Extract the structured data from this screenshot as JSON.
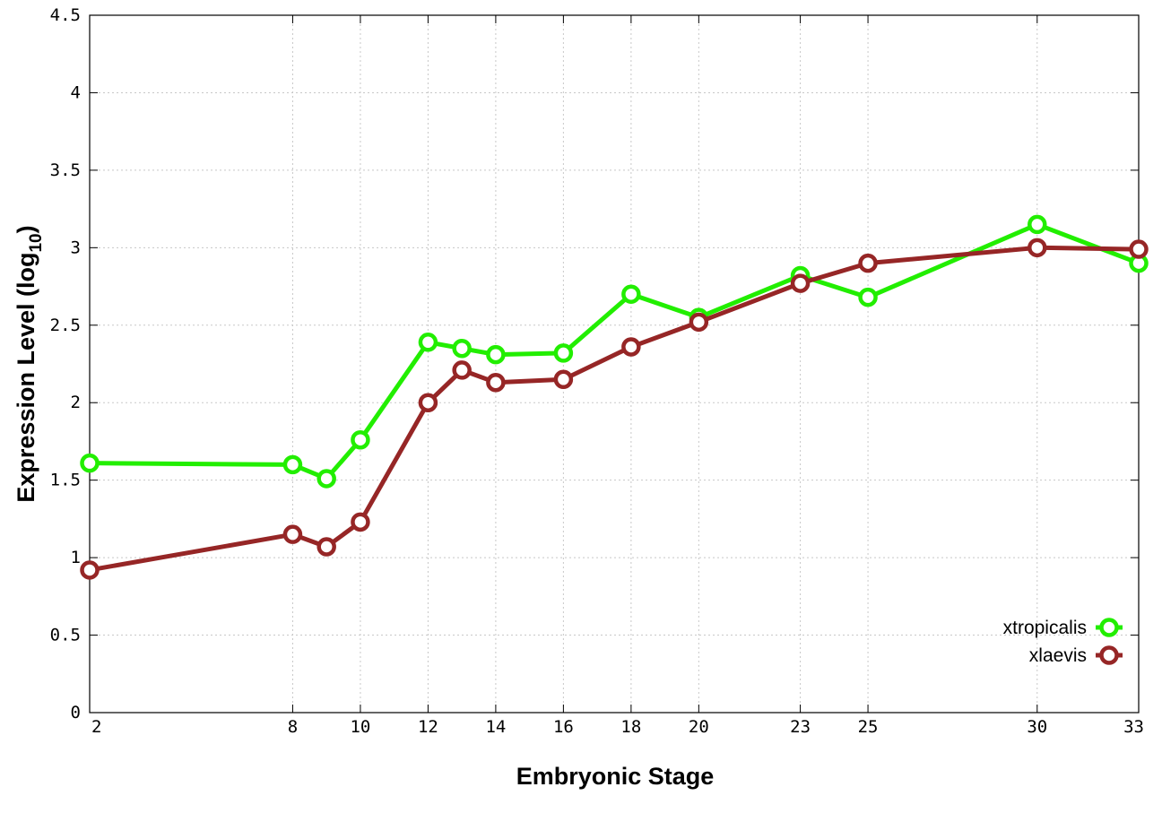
{
  "chart_data": {
    "type": "line",
    "xlabel": "Embryonic Stage",
    "ylabel_main": "Expression Level (log",
    "ylabel_sub": "10",
    "ylabel_close": ")",
    "xlim": [
      2,
      33
    ],
    "ylim": [
      0,
      4.5
    ],
    "xticks": [
      2,
      8,
      10,
      12,
      14,
      16,
      18,
      20,
      23,
      25,
      30,
      33
    ],
    "yticks": [
      0,
      0.5,
      1,
      1.5,
      2,
      2.5,
      3,
      3.5,
      4,
      4.5
    ],
    "ytick_labels": [
      "0",
      "0.5",
      "1",
      "1.5",
      "2",
      "2.5",
      "3",
      "3.5",
      "4",
      "4.5"
    ],
    "grid": true,
    "legend_position": "bottom-right",
    "series": [
      {
        "name": "xtropicalis",
        "color": "#22ee00",
        "x": [
          2,
          8,
          9,
          10,
          12,
          13,
          14,
          16,
          18,
          20,
          23,
          25,
          30,
          33
        ],
        "y": [
          1.61,
          1.6,
          1.51,
          1.76,
          2.39,
          2.35,
          2.31,
          2.32,
          2.7,
          2.55,
          2.82,
          2.68,
          3.15,
          2.9
        ]
      },
      {
        "name": "xlaevis",
        "color": "#962626",
        "x": [
          2,
          8,
          9,
          10,
          12,
          13,
          14,
          16,
          18,
          20,
          23,
          25,
          30,
          33
        ],
        "y": [
          0.92,
          1.15,
          1.07,
          1.23,
          2.0,
          2.21,
          2.13,
          2.15,
          2.36,
          2.52,
          2.77,
          2.9,
          3.0,
          2.99
        ]
      }
    ]
  }
}
